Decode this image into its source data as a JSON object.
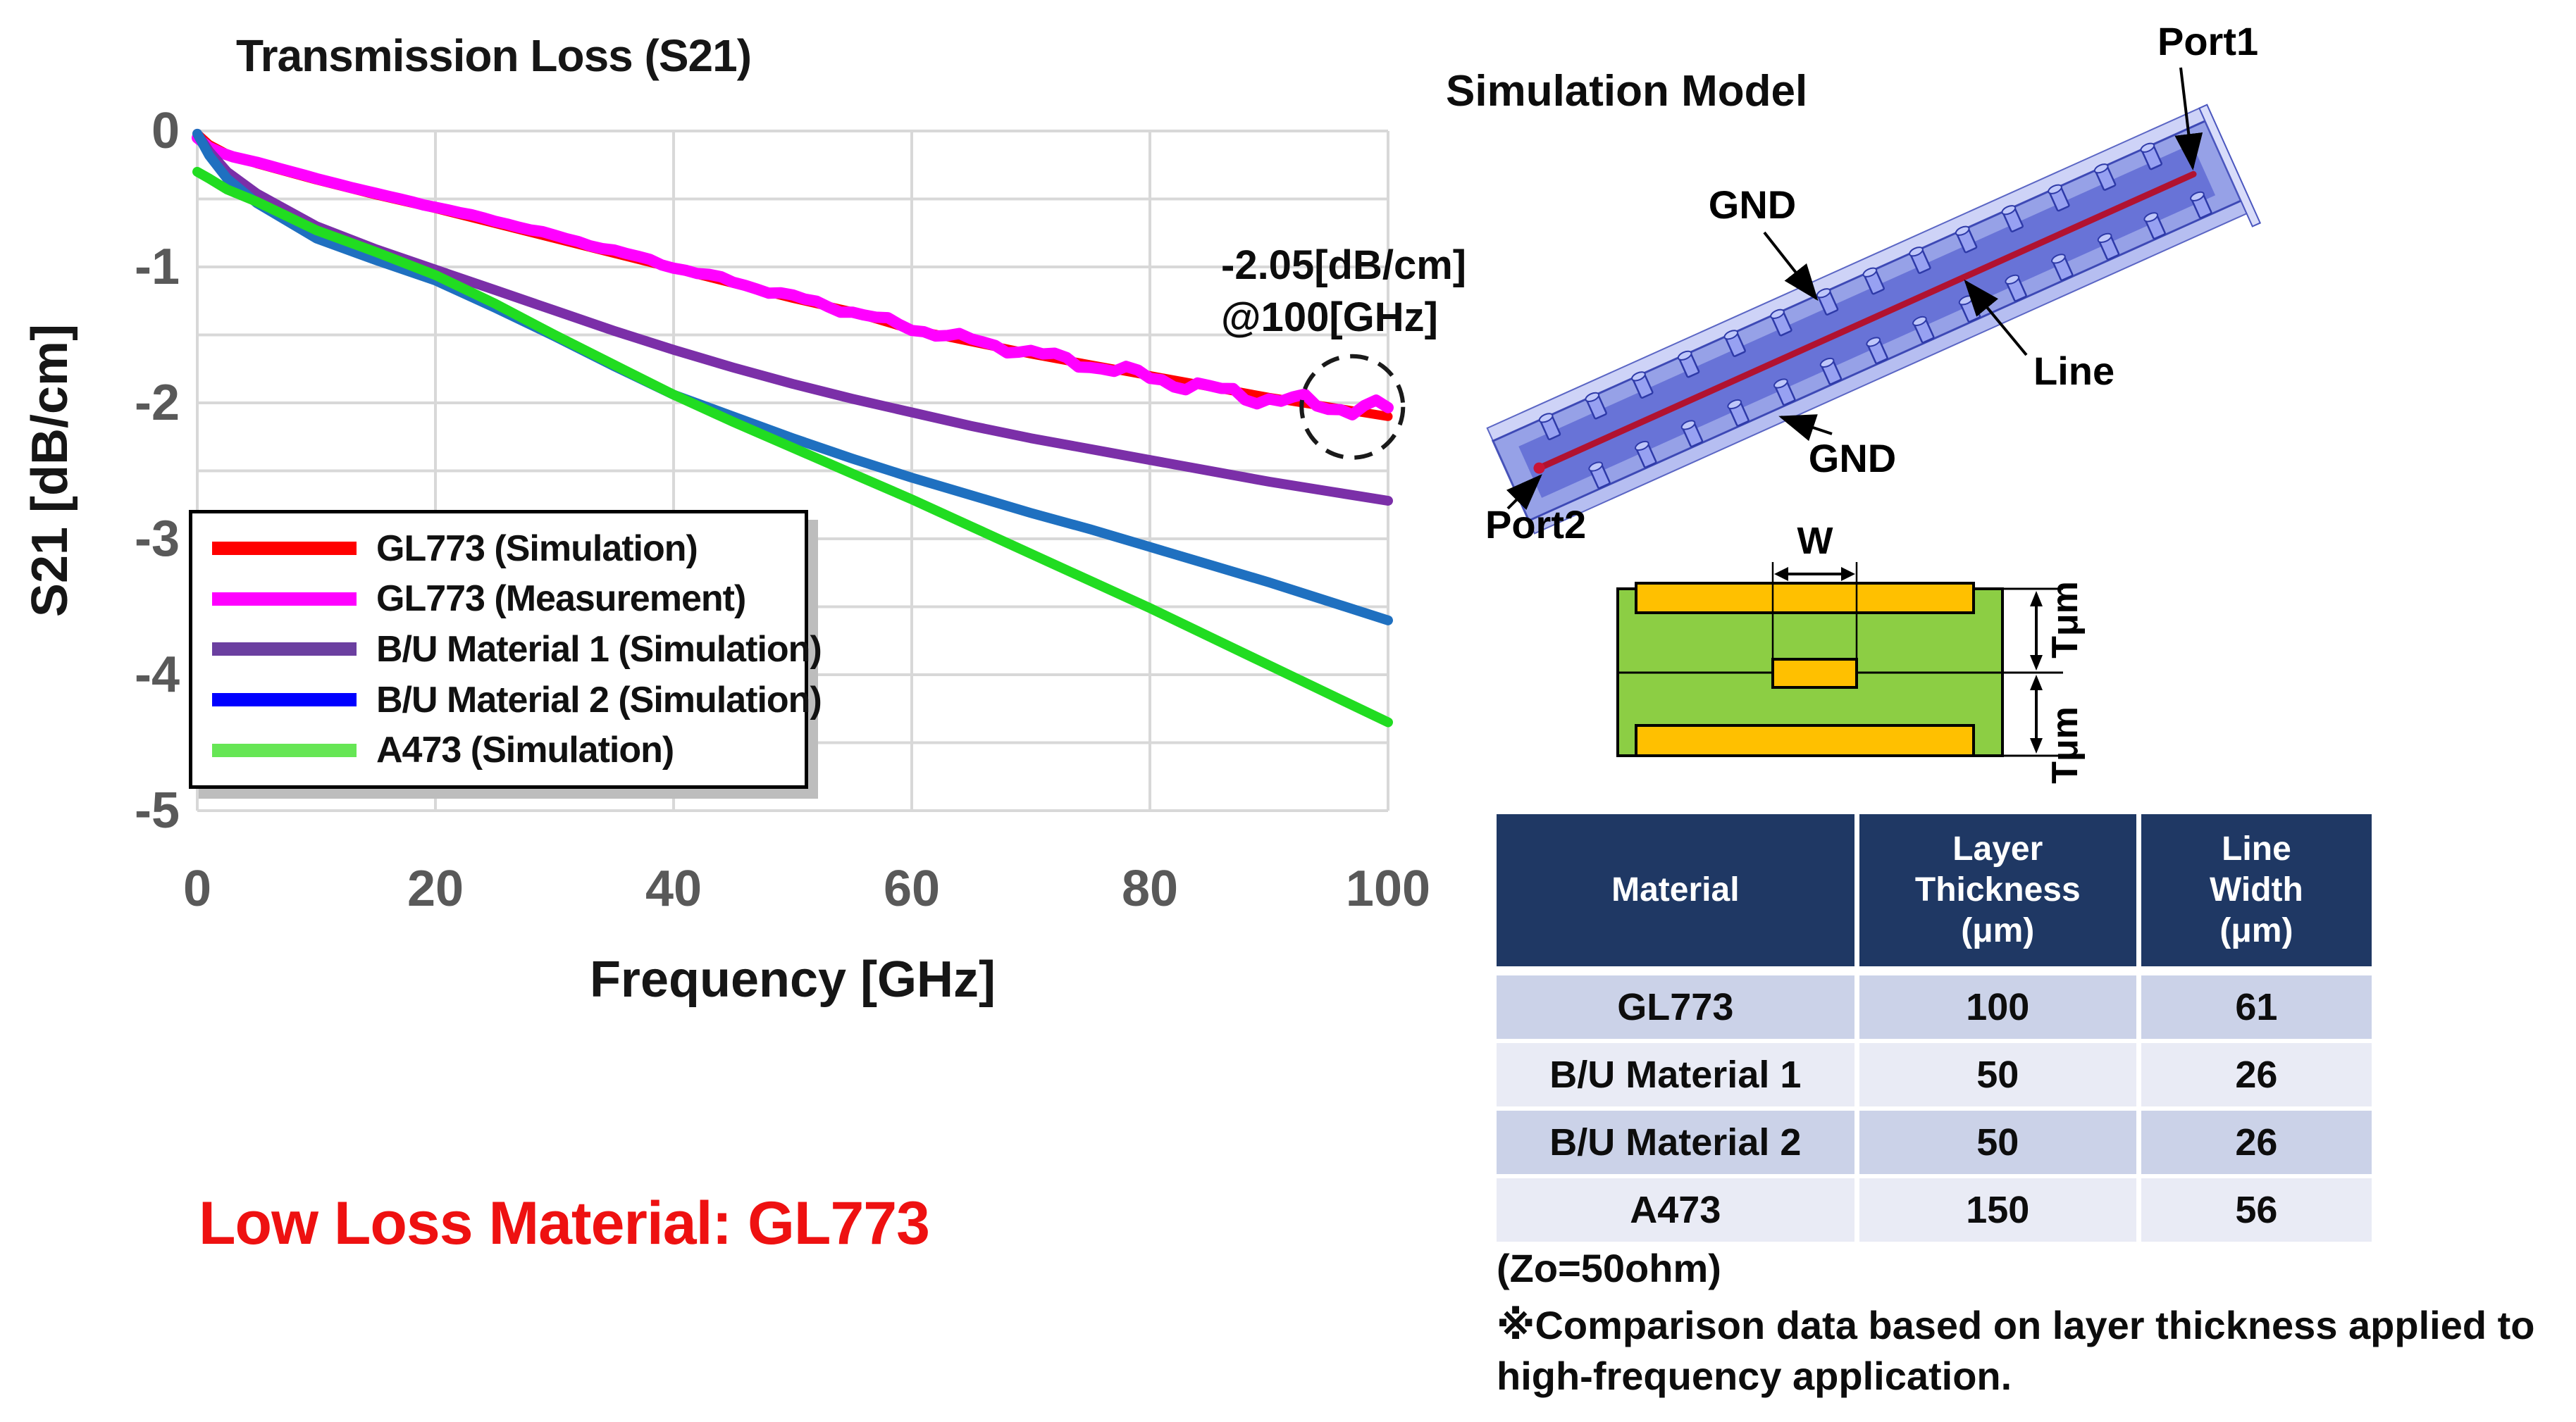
{
  "chart_data": {
    "type": "line",
    "title": "Transmission Loss (S21)",
    "xlabel": "Frequency [GHz]",
    "ylabel": "S21 [dB/cm]",
    "xlim": [
      0,
      100
    ],
    "ylim": [
      -5,
      0
    ],
    "xticks": [
      0,
      20,
      40,
      60,
      80,
      100
    ],
    "yticks": [
      0,
      -1,
      -2,
      -3,
      -4,
      -5
    ],
    "grid": {
      "x_step": 20,
      "y_step": 0.5,
      "color": "#D8D8D8",
      "on": true
    },
    "legend_position": "lower-left",
    "x": [
      0,
      1,
      2.5,
      5,
      10,
      15,
      20,
      25,
      30,
      35,
      40,
      45,
      50,
      55,
      60,
      65,
      70,
      75,
      80,
      85,
      90,
      95,
      100
    ],
    "series": [
      {
        "name": "GL773 (Simulation)",
        "color": "#FF0000",
        "legend_color": "#FF0000",
        "width": 13,
        "values": [
          -0.02,
          -0.1,
          -0.17,
          -0.24,
          -0.36,
          -0.47,
          -0.57,
          -0.68,
          -0.79,
          -0.9,
          -1.01,
          -1.12,
          -1.23,
          -1.33,
          -1.46,
          -1.55,
          -1.64,
          -1.72,
          -1.8,
          -1.88,
          -1.96,
          -2.03,
          -2.1
        ]
      },
      {
        "name": "GL773 (Measurement)",
        "color": "#FF00FF",
        "legend_color": "#FF00FF",
        "width": 16,
        "ripple": 0.05,
        "values": [
          -0.05,
          -0.12,
          -0.18,
          -0.23,
          -0.35,
          -0.46,
          -0.56,
          -0.66,
          -0.77,
          -0.88,
          -1.0,
          -1.11,
          -1.22,
          -1.33,
          -1.45,
          -1.54,
          -1.63,
          -1.72,
          -1.81,
          -1.9,
          -1.97,
          -2.02,
          -2.05
        ]
      },
      {
        "name": "B/U Material 1 (Simulation)",
        "color": "#7B2FA8",
        "legend_color": "#6B3FA0",
        "width": 14,
        "values": [
          -0.02,
          -0.15,
          -0.3,
          -0.46,
          -0.7,
          -0.87,
          -1.02,
          -1.17,
          -1.32,
          -1.47,
          -1.61,
          -1.74,
          -1.86,
          -1.97,
          -2.07,
          -2.17,
          -2.26,
          -2.34,
          -2.42,
          -2.5,
          -2.58,
          -2.65,
          -2.72
        ]
      },
      {
        "name": "B/U Material 2 (Simulation)",
        "color": "#1F70C0",
        "legend_color": "#0000FF",
        "width": 14,
        "values": [
          -0.02,
          -0.18,
          -0.35,
          -0.53,
          -0.79,
          -0.95,
          -1.1,
          -1.3,
          -1.51,
          -1.73,
          -1.94,
          -2.1,
          -2.26,
          -2.41,
          -2.55,
          -2.68,
          -2.81,
          -2.93,
          -3.06,
          -3.19,
          -3.32,
          -3.46,
          -3.6
        ]
      },
      {
        "name": "A473 (Simulation)",
        "color": "#21DC21",
        "legend_color": "#66E655",
        "width": 14,
        "values": [
          -0.3,
          -0.35,
          -0.43,
          -0.52,
          -0.73,
          -0.89,
          -1.06,
          -1.27,
          -1.5,
          -1.72,
          -1.94,
          -2.14,
          -2.33,
          -2.52,
          -2.71,
          -2.91,
          -3.11,
          -3.31,
          -3.51,
          -3.72,
          -3.93,
          -4.14,
          -4.35
        ]
      }
    ],
    "annotation": {
      "line1": "-2.05[dB/cm]",
      "line2": "@100[GHz]",
      "circle_x": 97,
      "circle_y": -2.03,
      "circle_r": 72
    }
  },
  "model": {
    "title": "Simulation Model",
    "port1": "Port1",
    "gnd_top": "GND",
    "line": "Line",
    "gnd_bottom": "GND",
    "port2": "Port2"
  },
  "cross_section": {
    "w": "W",
    "t_top": "Tμm",
    "t_bottom": "Tμm",
    "substrate_color": "#8CCE44",
    "conductor_color": "#FFC000"
  },
  "table": {
    "headers": [
      [
        "Material"
      ],
      [
        "Layer",
        "Thickness",
        "(μm)"
      ],
      [
        "Line",
        "Width",
        "(μm)"
      ]
    ],
    "rows": [
      [
        "GL773",
        "100",
        "61"
      ],
      [
        "B/U Material 1",
        "50",
        "26"
      ],
      [
        "B/U Material 2",
        "50",
        "26"
      ],
      [
        "A473",
        "150",
        "56"
      ]
    ],
    "header_bg": "#1F3864",
    "row_bg_a": "#CBD2E8",
    "row_bg_b": "#E9EBF5"
  },
  "notes": {
    "zo": "(Zo=50ohm)",
    "comparison": "※Comparison data based on layer thickness applied to high-frequency application."
  },
  "footer": {
    "highlight": "Low Loss Material: GL773",
    "color": "#EE1111"
  }
}
